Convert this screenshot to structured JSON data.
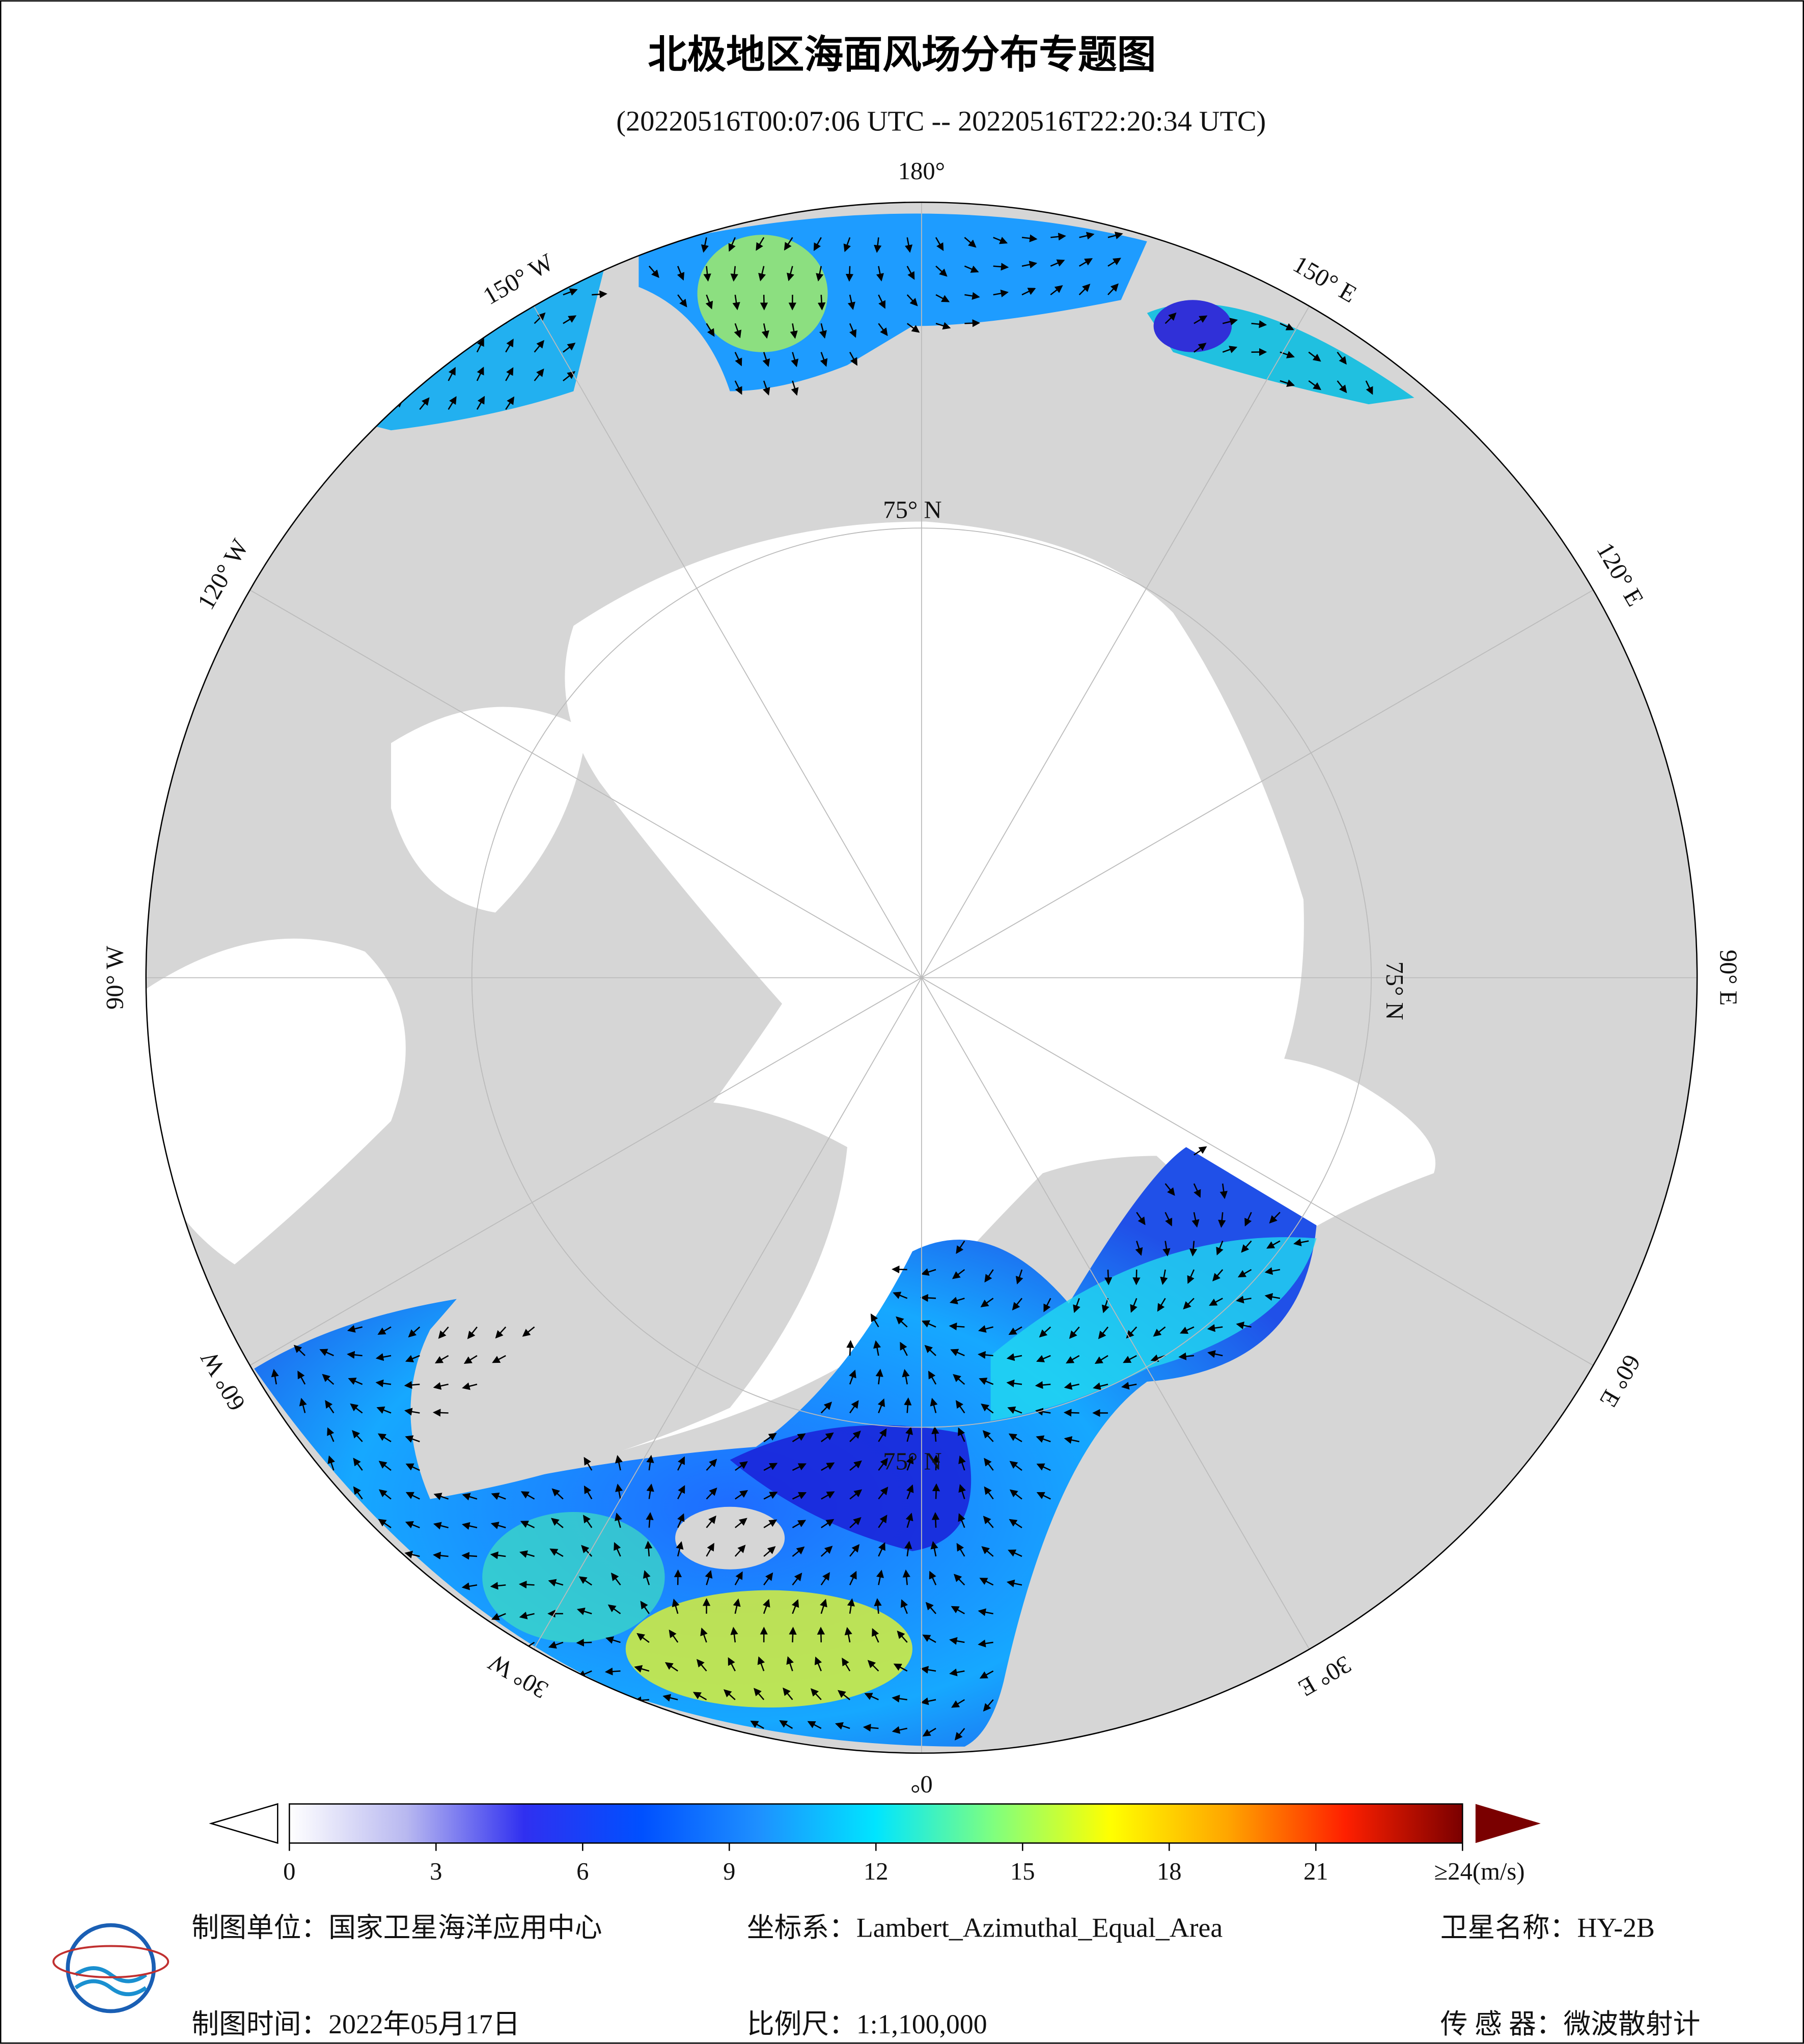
{
  "header": {
    "title": "北极地区海面风场分布专题图",
    "subtitle": "(20220516T00:07:06 UTC -- 20220516T22:20:34 UTC)"
  },
  "map": {
    "graticule_labels": [
      "180°",
      "150° W",
      "120° W",
      "90° W",
      "60° W",
      "30° W",
      "0°",
      "30° E",
      "60° E",
      "90° E",
      "120° E",
      "150° E"
    ],
    "latitude_labels": [
      "75° N",
      "75° N",
      "75° N"
    ]
  },
  "colorbar": {
    "min": 0,
    "max": 24,
    "colors": [
      "#ffffff",
      "#b8b8f0",
      "#3030f0",
      "#0050ff",
      "#1e90ff",
      "#00e5ff",
      "#7fff7f",
      "#ffff00",
      "#ffa500",
      "#ff2000",
      "#7a0000"
    ],
    "ticks": [
      0,
      3,
      6,
      9,
      12,
      15,
      18,
      21,
      {
        "value": 24,
        "label": "≥24(m/s)"
      }
    ]
  },
  "footer": {
    "rows": [
      [
        "制图单位：国家卫星海洋应用中心",
        "坐标系：Lambert_Azimuthal_Equal_Area",
        "卫星名称：HY-2B"
      ],
      [
        "制图时间：2022年05月17日",
        "比例尺：1:1,100,000",
        "传 感 器：微波散射计"
      ]
    ]
  }
}
